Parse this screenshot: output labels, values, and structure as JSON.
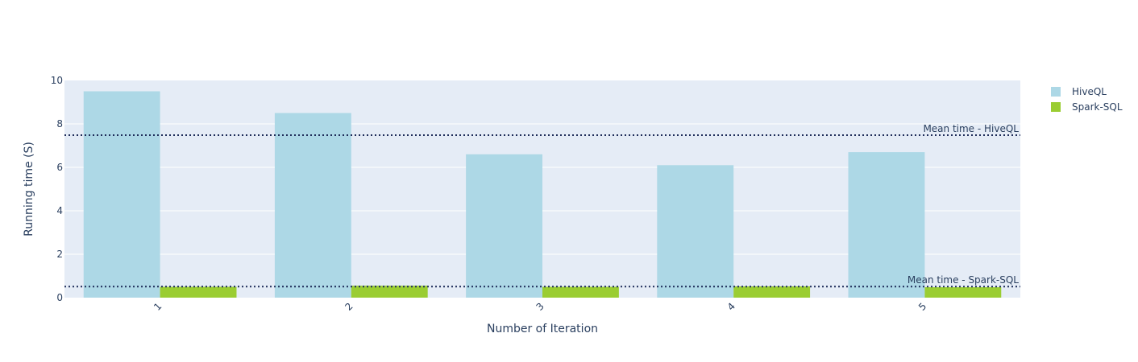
{
  "chart_data": {
    "type": "bar",
    "categories": [
      "1",
      "2",
      "3",
      "4",
      "5"
    ],
    "series": [
      {
        "name": "HiveQL",
        "values": [
          9.5,
          8.5,
          6.6,
          6.1,
          6.7
        ],
        "color": "#add8e6"
      },
      {
        "name": "Spark-SQL",
        "values": [
          0.5,
          0.55,
          0.5,
          0.52,
          0.48
        ],
        "color": "#9acd32"
      }
    ],
    "xlabel": "Number of Iteration",
    "ylabel": "Running time (S)",
    "ylim": [
      0,
      10
    ],
    "yticks": [
      0,
      2,
      4,
      6,
      8,
      10
    ],
    "grid": true,
    "legend_position": "top-right",
    "plot_background": "#e5ecf6",
    "reference_lines": [
      {
        "label": "Mean time - HiveQL",
        "value": 7.48,
        "color": "#1f2d5a",
        "style": "dotted"
      },
      {
        "label": "Mean time - Spark-SQL",
        "value": 0.51,
        "color": "#1f2d5a",
        "style": "dotted"
      }
    ]
  }
}
